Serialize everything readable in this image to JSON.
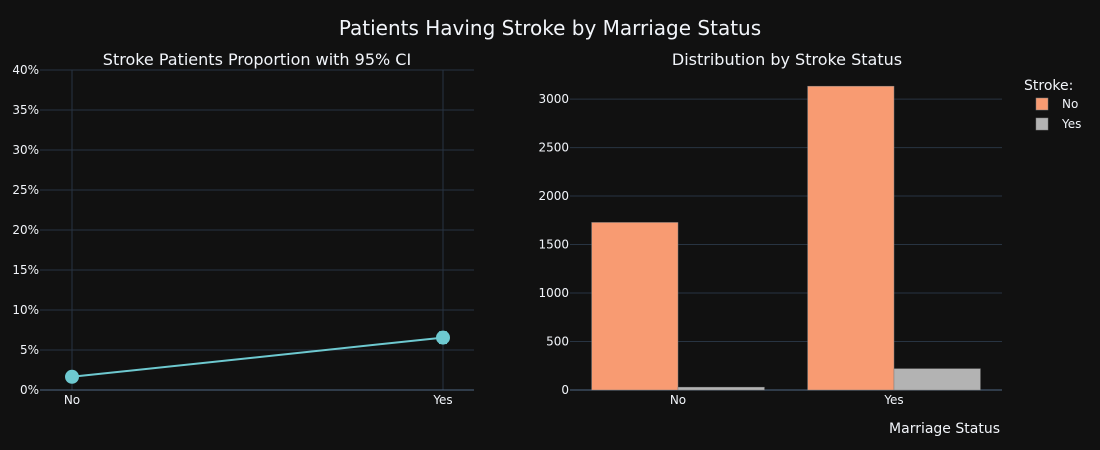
{
  "title": "Patients Having Stroke by Marriage Status",
  "colors": {
    "background": "#111111",
    "grid": "#283442",
    "line": "#6ec9d0",
    "no_bar": "#f89b72",
    "yes_bar": "#b3b3b3"
  },
  "chart_data": [
    {
      "type": "line",
      "title": "Stroke Patients Proportion with 95% CI",
      "categories": [
        "No",
        "Yes"
      ],
      "values": [
        0.0165,
        0.0655
      ],
      "error": [
        0.004,
        0.0068
      ],
      "ylim": [
        0,
        0.4
      ],
      "yticks": [
        0,
        0.05,
        0.1,
        0.15,
        0.2,
        0.25,
        0.3,
        0.35,
        0.4
      ],
      "ytick_labels": [
        "0%",
        "5%",
        "10%",
        "15%",
        "20%",
        "25%",
        "30%",
        "35%",
        "40%"
      ],
      "grid": true
    },
    {
      "type": "bar",
      "title": "Distribution by Stroke Status",
      "categories": [
        "No",
        "Yes"
      ],
      "xlabel": "Marriage Status",
      "ylabel": "",
      "ylim": [
        0,
        3300
      ],
      "yticks": [
        0,
        500,
        1000,
        1500,
        2000,
        2500,
        3000
      ],
      "ytick_labels": [
        "0",
        "500",
        "1000",
        "1500",
        "2000",
        "2500",
        "3000"
      ],
      "series": [
        {
          "name": "No",
          "values": [
            1728,
            3133
          ]
        },
        {
          "name": "Yes",
          "values": [
            29,
            220
          ]
        }
      ],
      "legend": {
        "title": "Stroke:",
        "placement": "top-right"
      },
      "grid": true
    }
  ]
}
